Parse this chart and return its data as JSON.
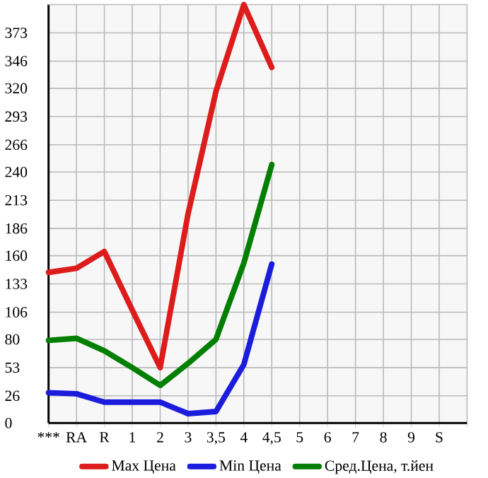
{
  "chart_data": {
    "type": "line",
    "categories": [
      "***",
      "RA",
      "R",
      "1",
      "2",
      "3",
      "3,5",
      "4",
      "4,5",
      "5",
      "6",
      "7",
      "8",
      "9",
      "S"
    ],
    "series": [
      {
        "name": "Max Цена",
        "color": "#dd1c1c",
        "values": [
          144,
          148,
          164,
          108,
          53,
          200,
          317,
          400,
          340,
          null,
          null,
          null,
          null,
          null,
          null
        ]
      },
      {
        "name": "Min Цена",
        "color": "#1c1cdd",
        "values": [
          29,
          28,
          20,
          20,
          20,
          9,
          11,
          56,
          152,
          null,
          null,
          null,
          null,
          null,
          null
        ]
      },
      {
        "name": "Сред.Цена, т.йен",
        "color": "#007f00",
        "values": [
          79,
          81,
          69,
          53,
          36,
          57,
          80,
          153,
          247,
          null,
          null,
          null,
          null,
          null,
          null
        ]
      }
    ],
    "ylim": [
      0,
      400
    ],
    "yticks": [
      0,
      26,
      53,
      80,
      106,
      133,
      160,
      186,
      213,
      240,
      266,
      293,
      320,
      346,
      373
    ],
    "grid": true,
    "legend": "bottom",
    "marker": "none",
    "line_style": "solid"
  }
}
